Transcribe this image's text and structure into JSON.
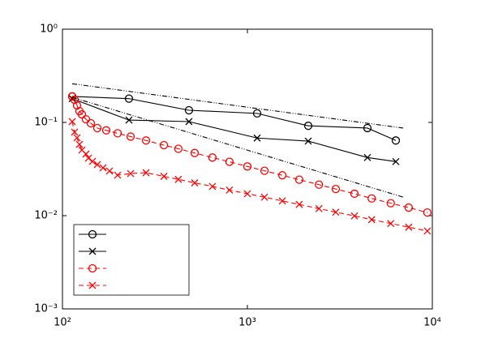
{
  "chart_data": {
    "type": "line",
    "xscale": "log",
    "yscale": "log",
    "xlim": [
      100,
      10000
    ],
    "ylim": [
      0.001,
      1
    ],
    "xticks": [
      {
        "value": 100,
        "label": "10²"
      },
      {
        "value": 1000,
        "label": "10³"
      },
      {
        "value": 10000,
        "label": "10⁴"
      }
    ],
    "yticks": [
      {
        "value": 0.001,
        "label": "10⁻³"
      },
      {
        "value": 0.01,
        "label": "10⁻²"
      },
      {
        "value": 0.1,
        "label": "10⁻¹"
      },
      {
        "value": 1,
        "label": "10⁰"
      }
    ],
    "legend": "lower left",
    "series": [
      {
        "color": "#000000",
        "marker": "o",
        "linestyle": "solid",
        "x": [
          112.9,
          228.9,
          483,
          1129,
          2133,
          4457,
          6347
        ],
        "values": [
          0.19,
          0.18,
          0.135,
          0.125,
          0.092,
          0.087,
          0.064
        ]
      },
      {
        "color": "#000000",
        "marker": "x",
        "linestyle": "solid",
        "x": [
          112.9,
          228.9,
          483,
          1129,
          2133,
          4457,
          6347
        ],
        "values": [
          0.18,
          0.106,
          0.102,
          0.068,
          0.063,
          0.042,
          0.038
        ]
      },
      {
        "color": "#ff0000",
        "marker": "o",
        "linestyle": "dashed",
        "x": [
          112.9,
          116.3,
          119.9,
          123.6,
          127.4,
          134.0,
          142.4,
          154.4,
          172.5,
          198.8,
          233.6,
          283.1,
          353.6,
          423.3,
          518.6,
          647,
          800,
          1000,
          1237,
          1545,
          1907,
          2438,
          3005,
          3792,
          4700,
          5960,
          7450,
          9400
        ],
        "values": [
          0.19,
          0.175,
          0.152,
          0.132,
          0.122,
          0.108,
          0.098,
          0.0869,
          0.0822,
          0.0765,
          0.0705,
          0.064,
          0.0571,
          0.0522,
          0.047,
          0.042,
          0.0378,
          0.0337,
          0.0303,
          0.0271,
          0.0243,
          0.0215,
          0.0193,
          0.0172,
          0.0153,
          0.0136,
          0.0122,
          0.0108
        ]
      },
      {
        "color": "#ff0000",
        "marker": "x",
        "linestyle": "dashed",
        "x": [
          112.9,
          116.3,
          119.9,
          123.6,
          127.4,
          134.0,
          138.2,
          145.3,
          154.4,
          165.7,
          179.7,
          198.8,
          233.6,
          283.1,
          353.6,
          423.3,
          518.6,
          647,
          800,
          1000,
          1237,
          1545,
          1907,
          2438,
          3005,
          3792,
          4700,
          5960,
          7450,
          9400
        ],
        "values": [
          0.102,
          0.0787,
          0.0684,
          0.0582,
          0.0506,
          0.0458,
          0.0414,
          0.0382,
          0.0353,
          0.0326,
          0.0301,
          0.0272,
          0.0283,
          0.0289,
          0.0264,
          0.0245,
          0.0225,
          0.0206,
          0.0188,
          0.0172,
          0.0158,
          0.0144,
          0.0132,
          0.0119,
          0.0109,
          0.00994,
          0.00907,
          0.00824,
          0.00752,
          0.00684
        ]
      },
      {
        "color": "#000000",
        "linestyle": "dashdot",
        "x": [
          112.9,
          6950
        ],
        "values": [
          0.26,
          0.087
        ]
      },
      {
        "color": "#000000",
        "linestyle": "dashdot",
        "x": [
          112.9,
          6950
        ],
        "values": [
          0.186,
          0.0158
        ]
      }
    ]
  }
}
